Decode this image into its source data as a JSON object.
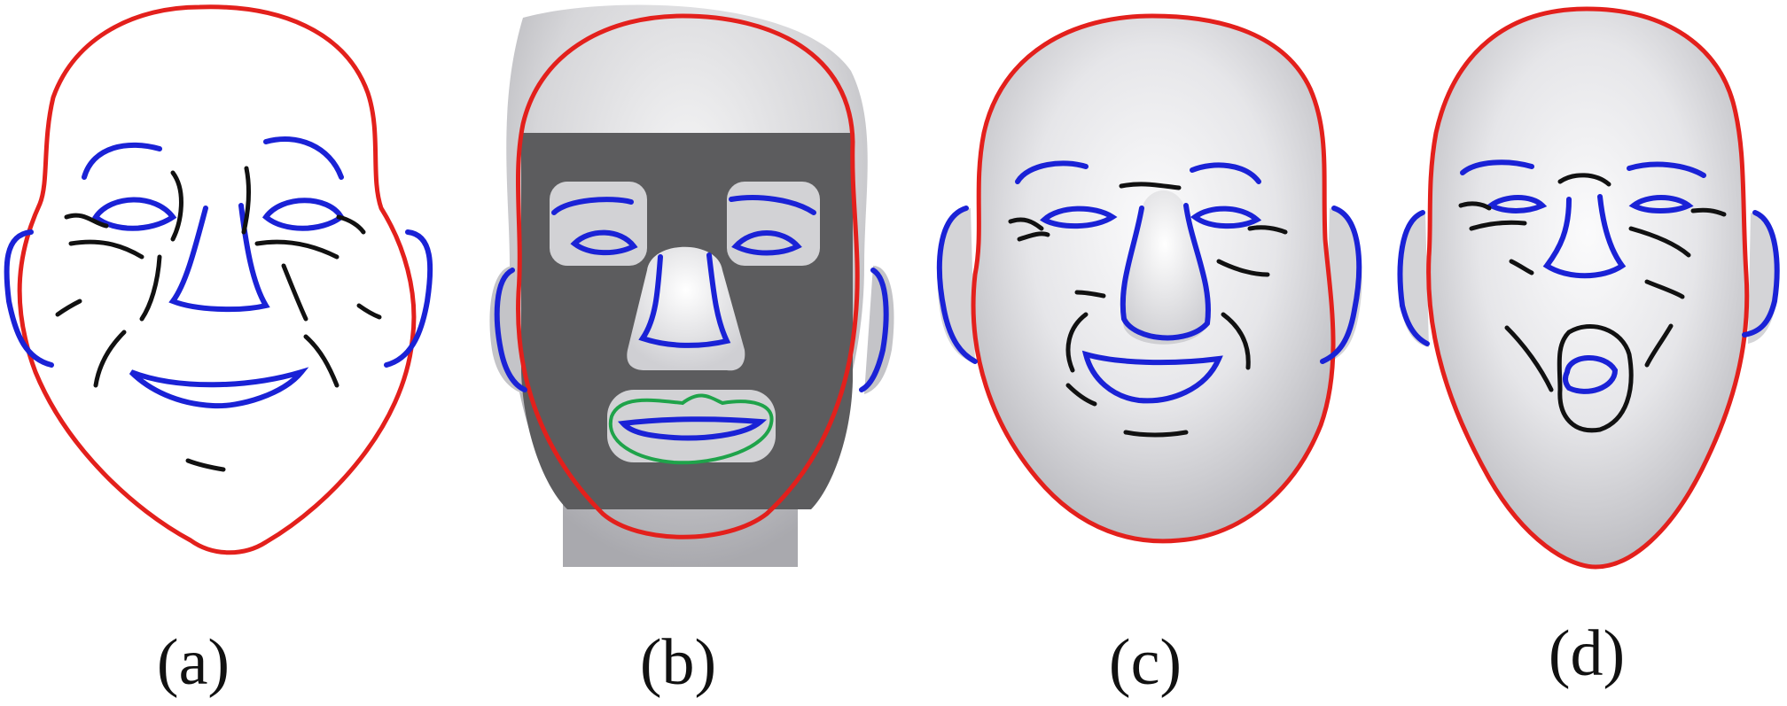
{
  "panels": [
    {
      "id": "a",
      "label": "(a)"
    },
    {
      "id": "b",
      "label": "(b)"
    },
    {
      "id": "c",
      "label": "(c)"
    },
    {
      "id": "d",
      "label": "(d)"
    }
  ],
  "colors": {
    "outline": "#e3201c",
    "feature": "#1a22d6",
    "wrinkle": "#111111",
    "mouth_region": "#1fa34a",
    "skin_light": "#f4f4f6",
    "skin_mid": "#c9c9cd",
    "mask": "#5c5c5e"
  }
}
